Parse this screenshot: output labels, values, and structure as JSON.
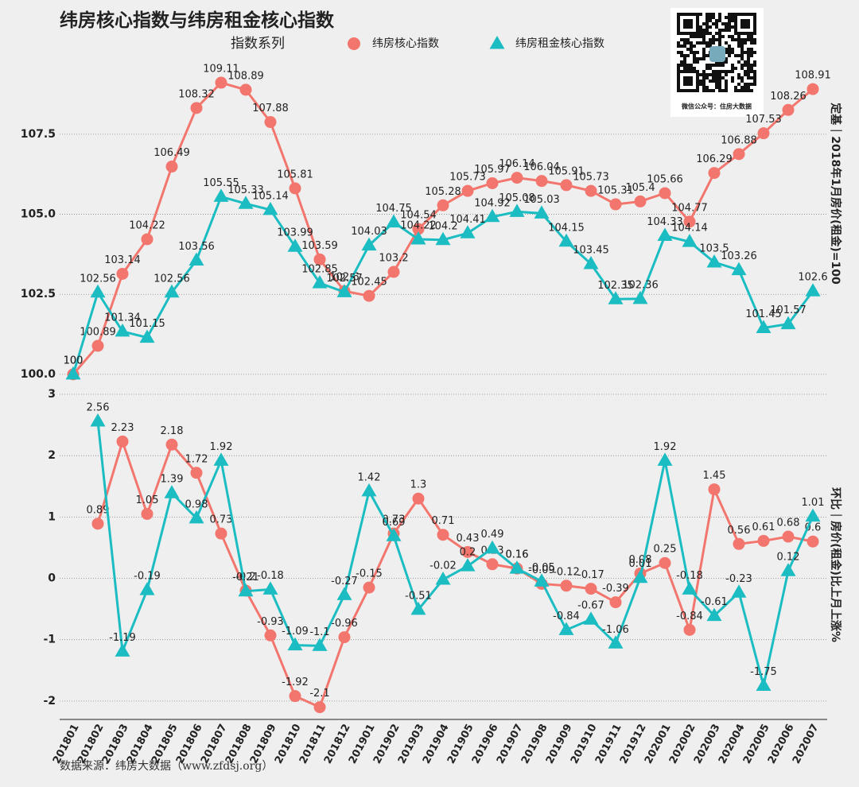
{
  "chart_data": [
    {
      "type": "line",
      "title": "纬房核心指数与纬房租金核心指数",
      "legend_title": "指数系列",
      "ylabel": "定基｜2018年1月房价(租金)=100",
      "ylim": [
        99.6,
        110.7
      ],
      "yticks": [
        {
          "value": 100,
          "label": "100.0"
        },
        102.5,
        {
          "value": 105,
          "label": "105.0"
        },
        107.5
      ],
      "grid": true,
      "series": [
        {
          "name": "纬房核心指数",
          "color": "#f3766e",
          "marker": "circle",
          "values": [
            100,
            100.89,
            103.14,
            104.22,
            106.49,
            108.32,
            109.11,
            108.89,
            107.88,
            105.81,
            103.59,
            102.6,
            102.45,
            103.2,
            104.54,
            105.28,
            105.73,
            105.97,
            106.14,
            106.04,
            105.91,
            105.73,
            105.31,
            105.4,
            105.66,
            104.77,
            106.29,
            106.88,
            107.53,
            108.26,
            108.91
          ]
        },
        {
          "name": "纬房租金核心指数",
          "color": "#1cbdc2",
          "marker": "triangle",
          "values": [
            100,
            102.56,
            101.34,
            101.15,
            102.56,
            103.56,
            105.55,
            105.33,
            105.14,
            103.99,
            102.85,
            102.57,
            104.03,
            104.75,
            104.22,
            104.2,
            104.41,
            104.92,
            105.08,
            105.03,
            104.15,
            103.45,
            102.35,
            102.36,
            104.33,
            104.14,
            103.5,
            103.26,
            101.45,
            101.57,
            102.6
          ]
        }
      ]
    },
    {
      "type": "line",
      "ylabel": "环比｜房价(租金)比上月上涨%",
      "categories": [
        "201801",
        "201802",
        "201803",
        "201804",
        "201805",
        "201806",
        "201807",
        "201808",
        "201809",
        "201810",
        "201811",
        "201812",
        "201901",
        "201902",
        "201903",
        "201904",
        "201905",
        "201906",
        "201907",
        "201908",
        "201909",
        "201910",
        "201911",
        "201912",
        "202001",
        "202002",
        "202003",
        "202004",
        "202005",
        "202006",
        "202007"
      ],
      "ylim": [
        -2.3,
        3
      ],
      "yticks": [
        -2,
        -1,
        0,
        1,
        2,
        3
      ],
      "grid": true,
      "series": [
        {
          "name": "纬房核心指数",
          "color": "#f3766e",
          "marker": "circle",
          "values": [
            null,
            0.89,
            2.23,
            1.05,
            2.18,
            1.72,
            0.73,
            -0.2,
            -0.93,
            -1.92,
            -2.1,
            -0.96,
            -0.15,
            0.73,
            1.3,
            0.71,
            0.43,
            0.23,
            0.16,
            -0.09,
            -0.12,
            -0.17,
            -0.39,
            0.08,
            0.25,
            -0.84,
            1.45,
            0.56,
            0.61,
            0.68,
            0.6
          ]
        },
        {
          "name": "纬房租金核心指数",
          "color": "#1cbdc2",
          "marker": "triangle",
          "values": [
            null,
            2.56,
            -1.19,
            -0.19,
            1.39,
            0.98,
            1.92,
            -0.21,
            -0.18,
            -1.09,
            -1.1,
            -0.27,
            1.42,
            0.69,
            -0.51,
            -0.02,
            0.2,
            0.49,
            0.16,
            -0.05,
            -0.84,
            -0.67,
            -1.06,
            0.01,
            1.92,
            -0.18,
            -0.61,
            -0.23,
            -1.75,
            0.12,
            1.01
          ]
        }
      ]
    }
  ],
  "source": "数据来源：纬房大数据（www.zfdsj.org）",
  "qr_caption": "微信公众号：住房大数据"
}
